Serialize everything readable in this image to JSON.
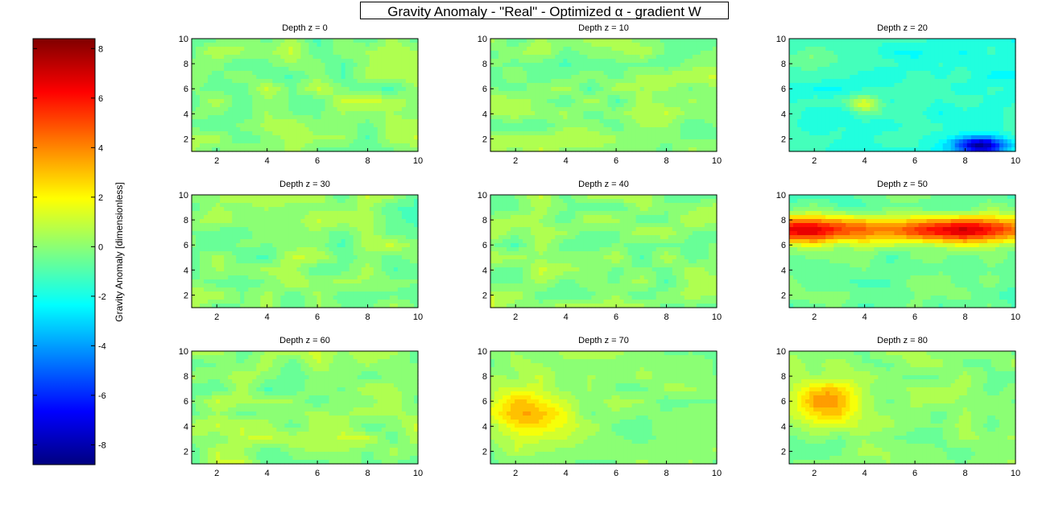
{
  "figure": {
    "title_main": "Gravity Anomaly - \"Real\" - Optimized ",
    "title_alpha": "α",
    "title_rest": " - gradient W"
  },
  "colorbar": {
    "label": "Gravity Anomaly [dimensionless]",
    "ticks": [
      -8,
      -6,
      -4,
      -2,
      0,
      2,
      4,
      6,
      8
    ],
    "range": [
      -8.8,
      8.4
    ],
    "colormap": "jet"
  },
  "chart_data": [
    {
      "type": "heatmap",
      "title": "Depth z = 0",
      "xlim": [
        1,
        10
      ],
      "ylim": [
        1,
        10
      ],
      "xticks": [
        2,
        4,
        6,
        8,
        10
      ],
      "yticks": [
        2,
        4,
        6,
        8,
        10
      ],
      "value_range": [
        -2,
        3
      ],
      "note": "contour, mostly near zero"
    },
    {
      "type": "heatmap",
      "title": "Depth z = 10",
      "xlim": [
        1,
        10
      ],
      "ylim": [
        1,
        10
      ],
      "xticks": [
        2,
        4,
        6,
        8,
        10
      ],
      "yticks": [
        2,
        4,
        6,
        8,
        10
      ],
      "value_range": [
        -2,
        3
      ],
      "note": "contour, mostly near zero"
    },
    {
      "type": "heatmap",
      "title": "Depth z = 20",
      "xlim": [
        1,
        10
      ],
      "ylim": [
        1,
        10
      ],
      "xticks": [
        2,
        4,
        6,
        8,
        10
      ],
      "yticks": [
        2,
        4,
        6,
        8,
        10
      ],
      "value_range": [
        -8,
        2
      ],
      "note": "low near x=8.5, y=1.5"
    },
    {
      "type": "heatmap",
      "title": "Depth z = 30",
      "xlim": [
        1,
        10
      ],
      "ylim": [
        1,
        10
      ],
      "xticks": [
        2,
        4,
        6,
        8,
        10
      ],
      "yticks": [
        2,
        4,
        6,
        8,
        10
      ],
      "value_range": [
        -2,
        2
      ],
      "note": "contour, mostly near zero"
    },
    {
      "type": "heatmap",
      "title": "Depth z = 40",
      "xlim": [
        1,
        10
      ],
      "ylim": [
        1,
        10
      ],
      "xticks": [
        2,
        4,
        6,
        8,
        10
      ],
      "yticks": [
        2,
        4,
        6,
        8,
        10
      ],
      "value_range": [
        -2,
        3
      ],
      "note": "contour, mostly near zero"
    },
    {
      "type": "heatmap",
      "title": "Depth z = 50",
      "xlim": [
        1,
        10
      ],
      "ylim": [
        1,
        10
      ],
      "xticks": [
        2,
        4,
        6,
        8,
        10
      ],
      "yticks": [
        2,
        4,
        6,
        8,
        10
      ],
      "value_range": [
        -1,
        8
      ],
      "note": "high band near y=7"
    },
    {
      "type": "heatmap",
      "title": "Depth z = 60",
      "xlim": [
        1,
        10
      ],
      "ylim": [
        1,
        10
      ],
      "xticks": [
        2,
        4,
        6,
        8,
        10
      ],
      "yticks": [
        2,
        4,
        6,
        8,
        10
      ],
      "value_range": [
        -3,
        2
      ],
      "note": "contour, mostly near zero"
    },
    {
      "type": "heatmap",
      "title": "Depth z = 70",
      "xlim": [
        1,
        10
      ],
      "ylim": [
        1,
        10
      ],
      "xticks": [
        2,
        4,
        6,
        8,
        10
      ],
      "yticks": [
        2,
        4,
        6,
        8,
        10
      ],
      "value_range": [
        -1,
        4
      ],
      "note": "high region on left near x=2.5, y=5"
    },
    {
      "type": "heatmap",
      "title": "Depth z = 80",
      "xlim": [
        1,
        10
      ],
      "ylim": [
        1,
        10
      ],
      "xticks": [
        2,
        4,
        6,
        8,
        10
      ],
      "yticks": [
        2,
        4,
        6,
        8,
        10
      ],
      "value_range": [
        -1,
        4
      ],
      "note": "high region on left near x=2.5, y=6"
    }
  ]
}
